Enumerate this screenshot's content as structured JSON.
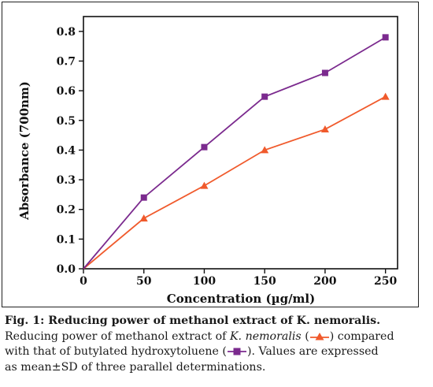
{
  "chart_data": {
    "type": "line",
    "xlabel": "Concentration (µg/ml)",
    "ylabel": "Absorbance (700nm)",
    "x": [
      0,
      50,
      100,
      150,
      200,
      250
    ],
    "xlim": [
      0,
      260
    ],
    "ylim": [
      0,
      0.85
    ],
    "x_ticks": [
      "0",
      "50",
      "100",
      "150",
      "200",
      "250"
    ],
    "y_ticks": [
      "0.0",
      "0.1",
      "0.2",
      "0.3",
      "0.4",
      "0.5",
      "0.6",
      "0.7",
      "0.8"
    ],
    "series": [
      {
        "key": "extract",
        "marker": "triangle",
        "color": "#f05a2c",
        "values": [
          0,
          0.17,
          0.28,
          0.4,
          0.47,
          0.58
        ]
      },
      {
        "key": "bht",
        "marker": "square",
        "color": "#7b2a8e",
        "values": [
          0,
          0.24,
          0.41,
          0.58,
          0.66,
          0.78
        ]
      }
    ],
    "grid": false,
    "legend": "in caption"
  },
  "caption": {
    "title": "Fig. 1: Reducing power of methanol extract of K. nemoralis.",
    "line2_pre": "Reducing power of methanol extract of ",
    "line2_italic": "K. nemoralis",
    "line2_mid": " (",
    "line2_post": ") compared",
    "line3_pre": "with that of butylated hydroxytoluene (",
    "line3_post": "). Values are expressed",
    "line4": "as mean±SD of three parallel determinations."
  }
}
